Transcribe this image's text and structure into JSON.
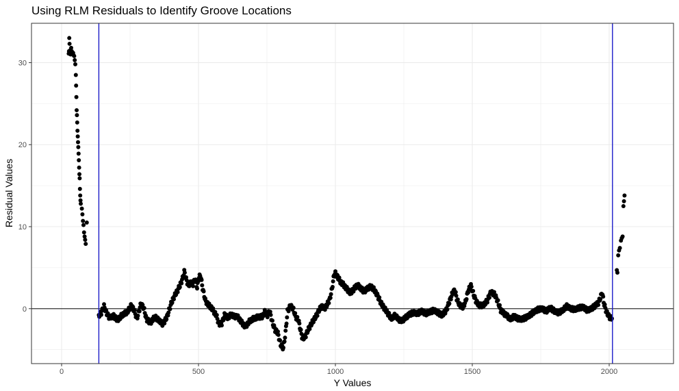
{
  "chart_data": {
    "type": "scatter",
    "title": "Using RLM Residuals to Identify Groove Locations",
    "xlabel": "Y Values",
    "ylabel": "Residual Values",
    "xlim": [
      -110,
      2235
    ],
    "ylim": [
      -6.7,
      34.8
    ],
    "x_ticks": [
      0,
      500,
      1000,
      1500,
      2000
    ],
    "y_ticks": [
      0,
      10,
      20,
      30
    ],
    "x_tick_labels": [
      "0",
      "500",
      "1000",
      "1500",
      "2000"
    ],
    "y_tick_labels": [
      "0",
      "10",
      "20",
      "30"
    ],
    "grid": true,
    "hline_y": 0,
    "groove_locations": [
      136,
      2012
    ],
    "colors": {
      "points": "#000000",
      "groove_line": "#1a1ac8",
      "zero_line": "#333333",
      "grid": "#ebebeb"
    },
    "left_edge_points": [
      [
        26,
        31.1
      ],
      [
        27,
        31.4
      ],
      [
        28,
        33.0
      ],
      [
        29,
        32.3
      ],
      [
        30,
        31.2
      ],
      [
        31,
        31.5
      ],
      [
        33,
        31.0
      ],
      [
        35,
        31.8
      ],
      [
        37,
        31.4
      ],
      [
        40,
        31.0
      ],
      [
        42,
        31.2
      ],
      [
        44,
        30.9
      ],
      [
        46,
        30.8
      ],
      [
        48,
        30.3
      ],
      [
        50,
        29.8
      ],
      [
        52,
        28.5
      ],
      [
        53,
        27.2
      ],
      [
        54,
        25.8
      ],
      [
        55,
        24.2
      ],
      [
        56,
        23.6
      ],
      [
        57,
        22.7
      ],
      [
        58,
        21.7
      ],
      [
        59,
        21.0
      ],
      [
        60,
        20.3
      ],
      [
        61,
        19.7
      ],
      [
        62,
        18.9
      ],
      [
        63,
        18.1
      ],
      [
        64,
        17.2
      ],
      [
        65,
        16.4
      ],
      [
        66,
        15.9
      ],
      [
        67,
        14.6
      ],
      [
        68,
        13.8
      ],
      [
        69,
        13.2
      ],
      [
        70,
        12.8
      ],
      [
        74,
        12.2
      ],
      [
        76,
        11.5
      ],
      [
        78,
        10.7
      ],
      [
        80,
        10.2
      ],
      [
        82,
        9.3
      ],
      [
        84,
        8.8
      ],
      [
        86,
        8.4
      ],
      [
        88,
        7.9
      ],
      [
        92,
        10.5
      ]
    ],
    "right_edge_points": [
      [
        2028,
        4.7
      ],
      [
        2030,
        4.4
      ],
      [
        2033,
        6.5
      ],
      [
        2036,
        7.1
      ],
      [
        2039,
        7.4
      ],
      [
        2043,
        8.3
      ],
      [
        2046,
        8.6
      ],
      [
        2049,
        8.8
      ],
      [
        2052,
        12.5
      ],
      [
        2054,
        13.1
      ],
      [
        2056,
        13.8
      ]
    ],
    "trace_points": [
      [
        136,
        -0.8
      ],
      [
        145,
        -0.5
      ],
      [
        155,
        0.3
      ],
      [
        165,
        -0.6
      ],
      [
        175,
        -1.1
      ],
      [
        190,
        -0.9
      ],
      [
        205,
        -1.4
      ],
      [
        220,
        -0.8
      ],
      [
        240,
        -0.4
      ],
      [
        255,
        0.4
      ],
      [
        265,
        -0.2
      ],
      [
        275,
        -1.2
      ],
      [
        290,
        0.6
      ],
      [
        300,
        0.1
      ],
      [
        310,
        -1.3
      ],
      [
        325,
        -1.7
      ],
      [
        340,
        -1.0
      ],
      [
        355,
        -1.4
      ],
      [
        370,
        -1.9
      ],
      [
        385,
        -1.0
      ],
      [
        400,
        0.6
      ],
      [
        410,
        1.4
      ],
      [
        420,
        2.0
      ],
      [
        432,
        2.8
      ],
      [
        442,
        3.7
      ],
      [
        448,
        4.5
      ],
      [
        455,
        3.6
      ],
      [
        463,
        2.8
      ],
      [
        472,
        3.2
      ],
      [
        480,
        3.0
      ],
      [
        488,
        3.6
      ],
      [
        495,
        2.6
      ],
      [
        502,
        3.9
      ],
      [
        508,
        4.0
      ],
      [
        515,
        2.5
      ],
      [
        525,
        1.0
      ],
      [
        535,
        0.5
      ],
      [
        545,
        0.2
      ],
      [
        555,
        -0.3
      ],
      [
        565,
        -0.8
      ],
      [
        575,
        -1.9
      ],
      [
        585,
        -1.8
      ],
      [
        595,
        -0.8
      ],
      [
        608,
        -1.1
      ],
      [
        620,
        -0.7
      ],
      [
        632,
        -1.0
      ],
      [
        640,
        -0.9
      ],
      [
        650,
        -1.3
      ],
      [
        660,
        -1.8
      ],
      [
        672,
        -2.2
      ],
      [
        684,
        -1.6
      ],
      [
        696,
        -1.3
      ],
      [
        710,
        -1.1
      ],
      [
        720,
        -1.0
      ],
      [
        732,
        -1.0
      ],
      [
        742,
        -0.4
      ],
      [
        752,
        -0.8
      ],
      [
        760,
        -0.3
      ],
      [
        770,
        -1.7
      ],
      [
        780,
        -2.6
      ],
      [
        790,
        -3.0
      ],
      [
        800,
        -4.4
      ],
      [
        810,
        -4.8
      ],
      [
        818,
        -2.9
      ],
      [
        825,
        -0.3
      ],
      [
        835,
        0.3
      ],
      [
        845,
        0.1
      ],
      [
        855,
        -1.0
      ],
      [
        865,
        -1.4
      ],
      [
        872,
        -2.5
      ],
      [
        880,
        -3.7
      ],
      [
        890,
        -3.4
      ],
      [
        900,
        -2.6
      ],
      [
        910,
        -2.0
      ],
      [
        920,
        -1.4
      ],
      [
        930,
        -0.9
      ],
      [
        940,
        -0.2
      ],
      [
        950,
        0.3
      ],
      [
        960,
        0.0
      ],
      [
        970,
        0.5
      ],
      [
        980,
        1.2
      ],
      [
        988,
        2.5
      ],
      [
        995,
        4.1
      ],
      [
        1000,
        4.3
      ],
      [
        1008,
        3.9
      ],
      [
        1018,
        3.3
      ],
      [
        1030,
        2.9
      ],
      [
        1042,
        2.4
      ],
      [
        1055,
        1.9
      ],
      [
        1068,
        2.4
      ],
      [
        1080,
        2.9
      ],
      [
        1092,
        2.5
      ],
      [
        1105,
        2.1
      ],
      [
        1118,
        2.5
      ],
      [
        1130,
        2.7
      ],
      [
        1142,
        2.3
      ],
      [
        1155,
        1.5
      ],
      [
        1168,
        0.6
      ],
      [
        1180,
        0.0
      ],
      [
        1192,
        -0.6
      ],
      [
        1205,
        -1.2
      ],
      [
        1218,
        -0.8
      ],
      [
        1230,
        -1.3
      ],
      [
        1242,
        -1.5
      ],
      [
        1256,
        -1.1
      ],
      [
        1270,
        -0.7
      ],
      [
        1285,
        -0.5
      ],
      [
        1300,
        -0.6
      ],
      [
        1315,
        -0.3
      ],
      [
        1330,
        -0.6
      ],
      [
        1345,
        -0.4
      ],
      [
        1360,
        -0.2
      ],
      [
        1375,
        -0.5
      ],
      [
        1390,
        -0.8
      ],
      [
        1405,
        -0.2
      ],
      [
        1418,
        1.0
      ],
      [
        1428,
        1.9
      ],
      [
        1436,
        2.3
      ],
      [
        1445,
        1.0
      ],
      [
        1455,
        0.4
      ],
      [
        1465,
        0.2
      ],
      [
        1475,
        0.8
      ],
      [
        1485,
        2.2
      ],
      [
        1495,
        2.8
      ],
      [
        1505,
        1.7
      ],
      [
        1515,
        0.8
      ],
      [
        1525,
        0.4
      ],
      [
        1540,
        0.4
      ],
      [
        1555,
        1.0
      ],
      [
        1568,
        2.0
      ],
      [
        1580,
        1.8
      ],
      [
        1592,
        1.0
      ],
      [
        1604,
        -0.2
      ],
      [
        1616,
        -0.6
      ],
      [
        1628,
        -0.9
      ],
      [
        1640,
        -1.3
      ],
      [
        1652,
        -0.9
      ],
      [
        1665,
        -1.2
      ],
      [
        1680,
        -1.3
      ],
      [
        1695,
        -1.1
      ],
      [
        1710,
        -0.8
      ],
      [
        1725,
        -0.4
      ],
      [
        1740,
        -0.1
      ],
      [
        1755,
        0.0
      ],
      [
        1770,
        -0.3
      ],
      [
        1785,
        0.1
      ],
      [
        1800,
        -0.3
      ],
      [
        1815,
        -0.5
      ],
      [
        1830,
        -0.2
      ],
      [
        1845,
        0.3
      ],
      [
        1860,
        0.0
      ],
      [
        1875,
        -0.1
      ],
      [
        1890,
        0.1
      ],
      [
        1905,
        0.2
      ],
      [
        1920,
        -0.2
      ],
      [
        1935,
        0.0
      ],
      [
        1950,
        0.4
      ],
      [
        1960,
        0.7
      ],
      [
        1968,
        1.3
      ],
      [
        1974,
        2.0
      ],
      [
        1982,
        0.5
      ],
      [
        1990,
        -0.4
      ],
      [
        2000,
        -1.0
      ],
      [
        2010,
        -1.2
      ]
    ]
  }
}
